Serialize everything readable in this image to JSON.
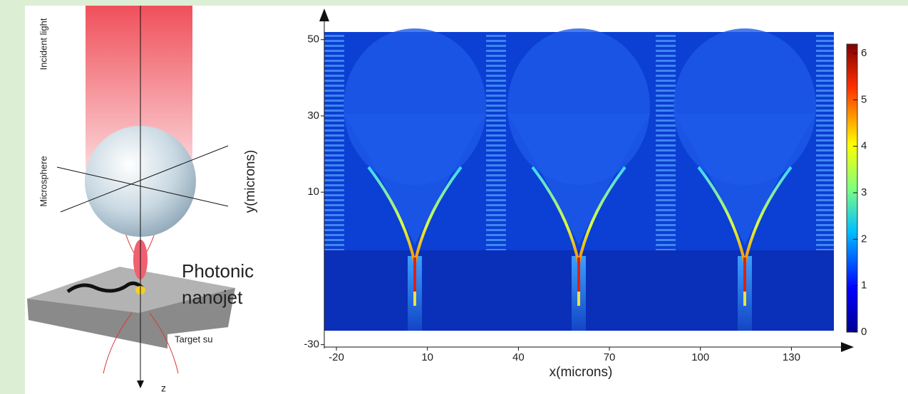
{
  "diagram": {
    "incident_light": "Incident light",
    "microsphere": "Microsphere",
    "nanojet": [
      "Photonic",
      "nanojet"
    ],
    "target": "Target su",
    "z_axis": "z"
  },
  "field_map": {
    "x_label": "x(microns)",
    "y_label": "y(microns)",
    "xlim": [
      -24,
      144
    ],
    "xticks": [
      -20,
      10,
      40,
      70,
      100,
      130
    ],
    "ylim": [
      -31,
      52
    ],
    "yticks": [
      -30,
      10,
      30,
      50
    ],
    "colorbar": {
      "lim": [
        0,
        6.2
      ],
      "ticks": [
        0,
        1,
        2,
        3,
        4,
        5,
        6
      ]
    }
  }
}
